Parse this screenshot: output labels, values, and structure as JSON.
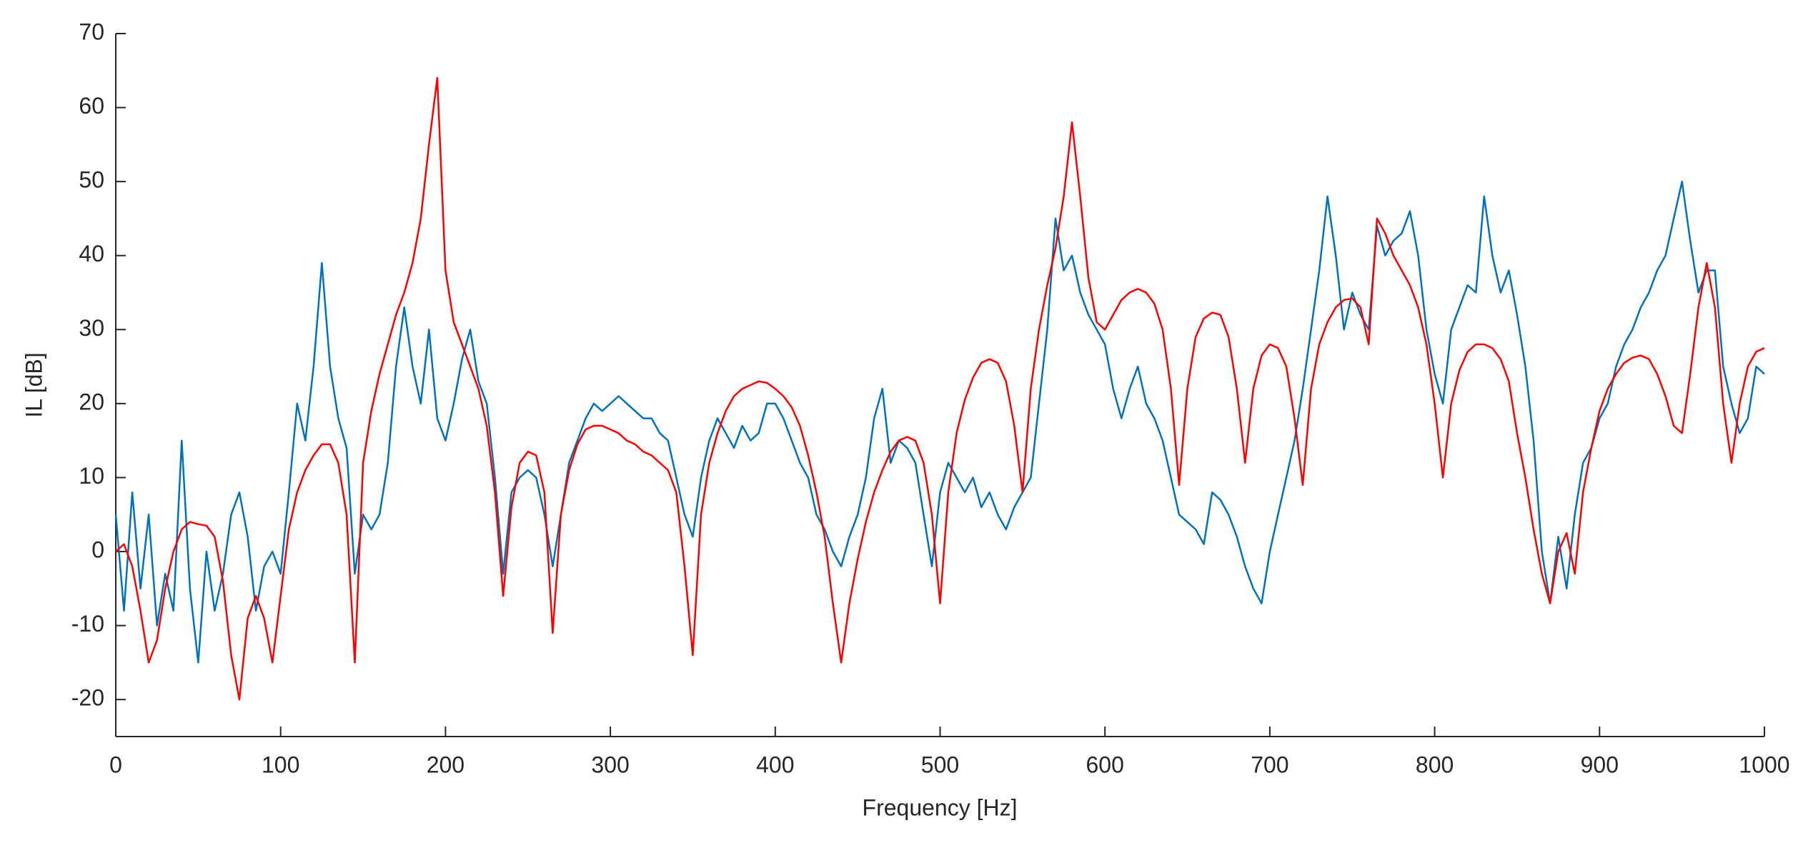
{
  "chart_data": {
    "type": "line",
    "xlabel": "Frequency [Hz]",
    "ylabel": "IL [dB]",
    "x": [
      0,
      5,
      10,
      15,
      20,
      25,
      30,
      35,
      40,
      45,
      50,
      55,
      60,
      65,
      70,
      75,
      80,
      85,
      90,
      95,
      100,
      105,
      110,
      115,
      120,
      125,
      130,
      135,
      140,
      145,
      150,
      155,
      160,
      165,
      170,
      175,
      180,
      185,
      190,
      195,
      200,
      205,
      210,
      215,
      220,
      225,
      230,
      235,
      240,
      245,
      250,
      255,
      260,
      265,
      270,
      275,
      280,
      285,
      290,
      295,
      300,
      305,
      310,
      315,
      320,
      325,
      330,
      335,
      340,
      345,
      350,
      355,
      360,
      365,
      370,
      375,
      380,
      385,
      390,
      395,
      400,
      405,
      410,
      415,
      420,
      425,
      430,
      435,
      440,
      445,
      450,
      455,
      460,
      465,
      470,
      475,
      480,
      485,
      490,
      495,
      500,
      505,
      510,
      515,
      520,
      525,
      530,
      535,
      540,
      545,
      550,
      555,
      560,
      565,
      570,
      575,
      580,
      585,
      590,
      595,
      600,
      605,
      610,
      615,
      620,
      625,
      630,
      635,
      640,
      645,
      650,
      655,
      660,
      665,
      670,
      675,
      680,
      685,
      690,
      695,
      700,
      705,
      710,
      715,
      720,
      725,
      730,
      735,
      740,
      745,
      750,
      755,
      760,
      765,
      770,
      775,
      780,
      785,
      790,
      795,
      800,
      805,
      810,
      815,
      820,
      825,
      830,
      835,
      840,
      845,
      850,
      855,
      860,
      865,
      870,
      875,
      880,
      885,
      890,
      895,
      900,
      905,
      910,
      915,
      920,
      925,
      930,
      935,
      940,
      945,
      950,
      955,
      960,
      965,
      970,
      975,
      980,
      985,
      990,
      995,
      1000
    ],
    "series": [
      {
        "color": "#0072bd",
        "values": [
          5,
          -8,
          8,
          -5,
          5,
          -10,
          -3,
          -8,
          15,
          -5,
          -15,
          0,
          -8,
          -3,
          5,
          8,
          2,
          -8,
          -2,
          0,
          -3,
          8,
          20,
          15,
          25,
          39,
          25,
          18,
          14,
          -3,
          5,
          3,
          5,
          12,
          25,
          33,
          25,
          20,
          30,
          18,
          15,
          20,
          26,
          30,
          23,
          20,
          10,
          -3,
          8,
          10,
          11,
          10,
          5,
          -2,
          5,
          12,
          15,
          18,
          20,
          19,
          20,
          21,
          20,
          19,
          18,
          18,
          16,
          15,
          10,
          5,
          2,
          10,
          15,
          18,
          16,
          14,
          17,
          15,
          16,
          20,
          20,
          18,
          15,
          12,
          10,
          5,
          3,
          0,
          -2,
          2,
          5,
          10,
          18,
          22,
          12,
          15,
          14,
          12,
          5,
          -2,
          8,
          12,
          10,
          8,
          10,
          6,
          8,
          5,
          3,
          6,
          8,
          10,
          20,
          30,
          45,
          38,
          40,
          35,
          32,
          30,
          28,
          22,
          18,
          22,
          25,
          20,
          18,
          15,
          10,
          5,
          4,
          3,
          1,
          8,
          7,
          5,
          2,
          -2,
          -5,
          -7,
          0,
          5,
          10,
          15,
          22,
          30,
          38,
          48,
          40,
          30,
          35,
          32,
          30,
          44,
          40,
          42,
          43,
          46,
          40,
          30,
          24,
          20,
          30,
          33,
          36,
          35,
          48,
          40,
          35,
          38,
          32,
          25,
          15,
          0,
          -7,
          2,
          -5,
          5,
          12,
          14,
          18,
          20,
          25,
          28,
          30,
          33,
          35,
          38,
          40,
          45,
          50,
          42,
          35,
          38,
          38,
          25,
          20,
          16,
          18,
          25,
          24
        ]
      },
      {
        "color": "#ff0000",
        "values": [
          0,
          1,
          -2,
          -8,
          -15,
          -12,
          -5,
          0,
          3,
          4,
          3.7,
          3.5,
          2,
          -4,
          -14,
          -20,
          -9,
          -6,
          -9,
          -15,
          -6,
          3,
          8,
          11,
          13,
          14.5,
          14.5,
          12,
          5,
          -15,
          12,
          19,
          24,
          28,
          32,
          35,
          39,
          45,
          55,
          64,
          38,
          31,
          28,
          25,
          22,
          17,
          8,
          -6,
          6,
          12,
          13.5,
          13,
          8,
          -11,
          5,
          11,
          14.5,
          16.5,
          17,
          17,
          16.5,
          16,
          15,
          14.5,
          13.5,
          13,
          12,
          11,
          8,
          -2,
          -14,
          5,
          12,
          16,
          19,
          21,
          22,
          22.5,
          23,
          22.8,
          22,
          21,
          19.5,
          17,
          13,
          8,
          2,
          -7,
          -15,
          -7,
          -1,
          4,
          8,
          11,
          13.5,
          15,
          15.5,
          15,
          12,
          5,
          -7,
          8,
          16,
          20.5,
          23.5,
          25.5,
          26,
          25.5,
          23,
          17,
          8,
          22,
          30,
          36,
          41,
          48,
          58,
          48,
          37,
          31,
          30,
          32,
          34,
          35,
          35.5,
          35,
          33.5,
          30,
          22,
          9,
          22,
          29,
          31.5,
          32.3,
          32,
          29,
          22,
          12,
          22,
          26.5,
          28,
          27.5,
          25,
          18,
          9,
          22,
          28,
          31,
          33,
          34,
          34.2,
          33,
          28,
          45,
          43,
          40,
          38,
          36,
          33,
          28,
          20,
          10,
          20,
          24.5,
          27,
          28,
          28,
          27.5,
          26,
          23,
          16,
          10,
          3,
          -3,
          -7,
          0,
          2.5,
          -3,
          8,
          14,
          19,
          22,
          24,
          25.5,
          26.2,
          26.5,
          26,
          24,
          21,
          17,
          16,
          24,
          33,
          39,
          33,
          20,
          12,
          20,
          25,
          27,
          27.5
        ]
      }
    ],
    "xlim": [
      0,
      1000
    ],
    "xticks": [
      0,
      100,
      200,
      300,
      400,
      500,
      600,
      700,
      800,
      900,
      1000
    ],
    "ylim": [
      -25,
      70
    ],
    "yticks": [
      -20,
      -10,
      0,
      10,
      20,
      30,
      40,
      50,
      60,
      70
    ]
  }
}
